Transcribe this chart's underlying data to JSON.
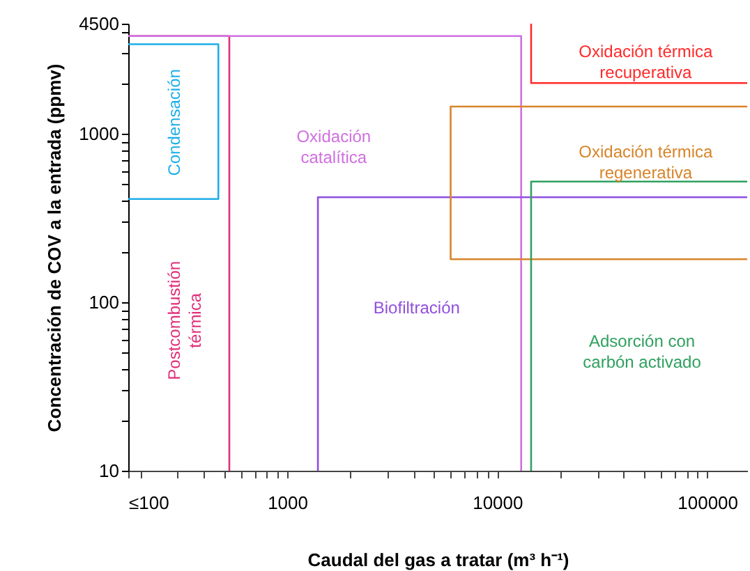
{
  "chart_data": {
    "type": "line",
    "xlabel": "Caudal del gas a tratar (m³ h⁻¹)",
    "ylabel": "Concentración de COV a la entrada (ppmv)",
    "log": "xy",
    "grid": false,
    "marker": "none",
    "line_style": "solid",
    "xlim": [
      175,
      155000
    ],
    "ylim": [
      10,
      4500
    ],
    "xticks": [
      {
        "value": 175,
        "label": "≤100"
      },
      {
        "value": 200,
        "label": null
      },
      {
        "value": 300,
        "label": null
      },
      {
        "value": 400,
        "label": null
      },
      {
        "value": 500,
        "label": null
      },
      {
        "value": 600,
        "label": null
      },
      {
        "value": 700,
        "label": null
      },
      {
        "value": 800,
        "label": null
      },
      {
        "value": 900,
        "label": null
      },
      1000,
      {
        "value": 2000,
        "label": null
      },
      {
        "value": 3000,
        "label": null
      },
      {
        "value": 4000,
        "label": null
      },
      {
        "value": 5000,
        "label": null
      },
      {
        "value": 6000,
        "label": null
      },
      {
        "value": 7000,
        "label": null
      },
      {
        "value": 8000,
        "label": null
      },
      {
        "value": 9000,
        "label": null
      },
      10000,
      {
        "value": 20000,
        "label": null
      },
      {
        "value": 30000,
        "label": null
      },
      {
        "value": 40000,
        "label": null
      },
      {
        "value": 50000,
        "label": null
      },
      {
        "value": 60000,
        "label": null
      },
      {
        "value": 70000,
        "label": null
      },
      {
        "value": 80000,
        "label": null
      },
      {
        "value": 90000,
        "label": null
      },
      100000
    ],
    "yticks": [
      10,
      {
        "value": 20,
        "label": null
      },
      {
        "value": 30,
        "label": null
      },
      {
        "value": 40,
        "label": null
      },
      {
        "value": 50,
        "label": null
      },
      {
        "value": 60,
        "label": null
      },
      {
        "value": 70,
        "label": null
      },
      {
        "value": 80,
        "label": null
      },
      {
        "value": 90,
        "label": null
      },
      100,
      {
        "value": 200,
        "label": null
      },
      {
        "value": 300,
        "label": null
      },
      {
        "value": 400,
        "label": null
      },
      {
        "value": 500,
        "label": null
      },
      {
        "value": 600,
        "label": null
      },
      {
        "value": 700,
        "label": null
      },
      {
        "value": 800,
        "label": null
      },
      {
        "value": 900,
        "label": null
      },
      1000,
      {
        "value": 2000,
        "label": null
      },
      {
        "value": 3000,
        "label": null
      },
      {
        "value": 4000,
        "label": null
      },
      4500
    ],
    "series": [
      {
        "color": "#1eaee8",
        "x": [
          175,
          470,
          470,
          175
        ],
        "values": [
          3400,
          3400,
          410,
          410
        ]
      },
      {
        "color": "#e0307a",
        "x": [
          175,
          530,
          530
        ],
        "values": [
          3800,
          3800,
          10
        ]
      },
      {
        "color": "#d070e0",
        "x": [
          175,
          13000,
          13000
        ],
        "values": [
          3800,
          3800,
          10
        ]
      },
      {
        "color": "#9050e0",
        "x": [
          1400,
          1400,
          155000
        ],
        "values": [
          10,
          420,
          420
        ]
      },
      {
        "color": "#ff2a2a",
        "x": [
          14500,
          14500,
          155000
        ],
        "values": [
          4500,
          2000,
          2000
        ]
      },
      {
        "color": "#d8842a",
        "x": [
          155000,
          6000,
          6000,
          155000
        ],
        "values": [
          1450,
          1450,
          180,
          180
        ]
      },
      {
        "color": "#30a060",
        "x": [
          14500,
          14500,
          155000
        ],
        "values": [
          10,
          520,
          520
        ]
      }
    ],
    "annotations": [
      "Condensación",
      "Postcombustión\ntérmica",
      "Oxidación\ncatalítica",
      "Biofiltración",
      "Oxidación térmica\nrecuperativa",
      "Oxidación térmica\nregenerativa",
      "Adsorción con\ncarbón activado"
    ]
  }
}
